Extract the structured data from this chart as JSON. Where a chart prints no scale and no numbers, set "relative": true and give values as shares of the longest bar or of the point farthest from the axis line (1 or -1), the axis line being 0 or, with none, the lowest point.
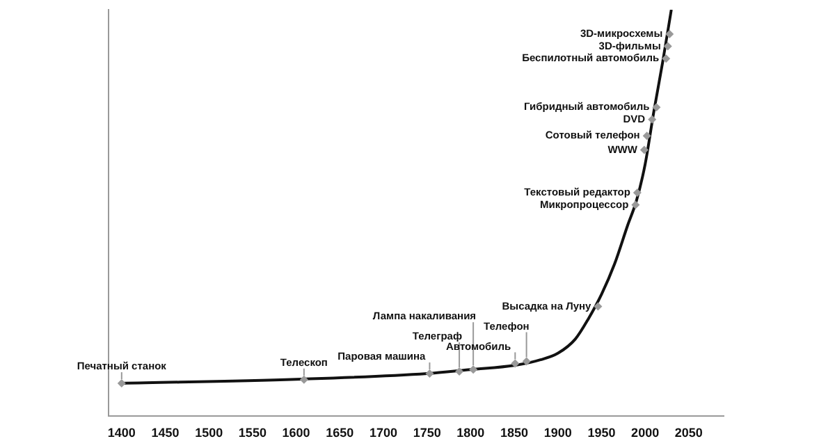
{
  "chart_data": {
    "type": "line",
    "relative": true,
    "xlim": [
      1385,
      2090
    ],
    "xticks": [
      1400,
      1450,
      1500,
      1550,
      1600,
      1650,
      1700,
      1750,
      1800,
      1850,
      1900,
      1950,
      2000,
      2050
    ],
    "grid": false,
    "legend": false,
    "x": [
      1400,
      1600,
      1750,
      1800,
      1850,
      1880,
      1900,
      1920,
      1935,
      1950,
      1965,
      1980,
      1990,
      2000,
      2010,
      2020,
      2030
    ],
    "series": [
      {
        "color": "#111111",
        "values": [
          0.081,
          0.091,
          0.105,
          0.115,
          0.125,
          0.139,
          0.155,
          0.19,
          0.24,
          0.3,
          0.375,
          0.47,
          0.53,
          0.62,
          0.75,
          0.87,
          1.0
        ]
      }
    ],
    "annotations": [
      {
        "text": "Печатный станок",
        "x": 1400,
        "y": 0.081
      },
      {
        "text": "Телескоп",
        "x": 1609,
        "y": 0.09
      },
      {
        "text": "Паровая машина",
        "x": 1753,
        "y": 0.105
      },
      {
        "text": "Телеграф",
        "x": 1787,
        "y": 0.11
      },
      {
        "text": "Лампа накаливания",
        "x": 1803,
        "y": 0.115
      },
      {
        "text": "Автомобиль",
        "x": 1851,
        "y": 0.13
      },
      {
        "text": "Телефон",
        "x": 1864,
        "y": 0.135
      },
      {
        "text": "Высадка на Луну",
        "x": 1946,
        "y": 0.27
      },
      {
        "text": "Микропроцессор",
        "x": 1989,
        "y": 0.52
      },
      {
        "text": "Текстовый редактор",
        "x": 1991,
        "y": 0.55
      },
      {
        "text": "WWW",
        "x": 1999,
        "y": 0.655
      },
      {
        "text": "Сотовый телефон",
        "x": 2002,
        "y": 0.69
      },
      {
        "text": "DVD",
        "x": 2008,
        "y": 0.73
      },
      {
        "text": "Гибридный автомобиль",
        "x": 2013,
        "y": 0.76
      },
      {
        "text": "Беспилотный автомобиль",
        "x": 2024,
        "y": 0.88
      },
      {
        "text": "3D-фильмы",
        "x": 2026,
        "y": 0.91
      },
      {
        "text": "3D-микросхемы",
        "x": 2028,
        "y": 0.94
      }
    ]
  }
}
